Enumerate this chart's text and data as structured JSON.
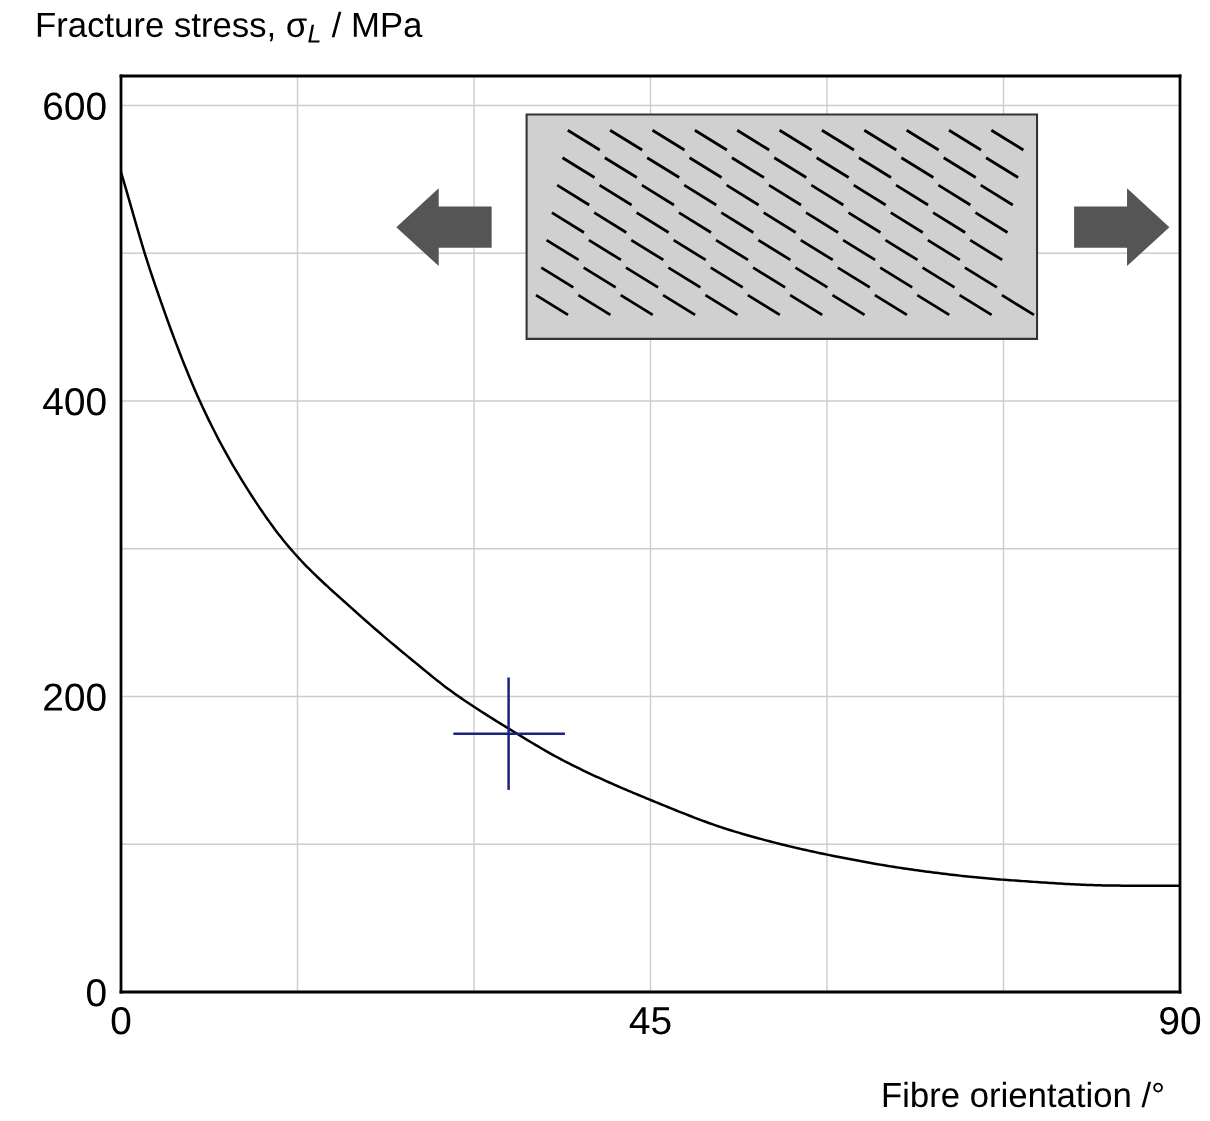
{
  "chart_data": {
    "type": "line",
    "ylabel": "Fracture stress, σ$_{L}$ / MPa",
    "xlabel": "Fibre orientation /°",
    "xlim": [
      0,
      90
    ],
    "ylim": [
      0,
      620
    ],
    "xticks": [
      0,
      {
        "value": 15,
        "label": null
      },
      {
        "value": 30,
        "label": null
      },
      45,
      {
        "value": 60,
        "label": null
      },
      {
        "value": 75,
        "label": null
      },
      90
    ],
    "yticks": [
      0,
      {
        "value": 100,
        "label": null
      },
      200,
      {
        "value": 300,
        "label": null
      },
      400,
      {
        "value": 500,
        "label": null
      },
      600
    ],
    "grid": true,
    "series": [
      {
        "color": "#000000",
        "x": [
          0,
          2.5,
          6.7,
          10,
          14.4,
          20,
          25,
          28,
          33,
          38,
          45,
          52,
          60,
          68,
          75,
          85,
          90
        ],
        "values": [
          555,
          488,
          400,
          350,
          300,
          257,
          223,
          204,
          178,
          155,
          130,
          109,
          93,
          82,
          76,
          72,
          72
        ]
      }
    ]
  }
}
